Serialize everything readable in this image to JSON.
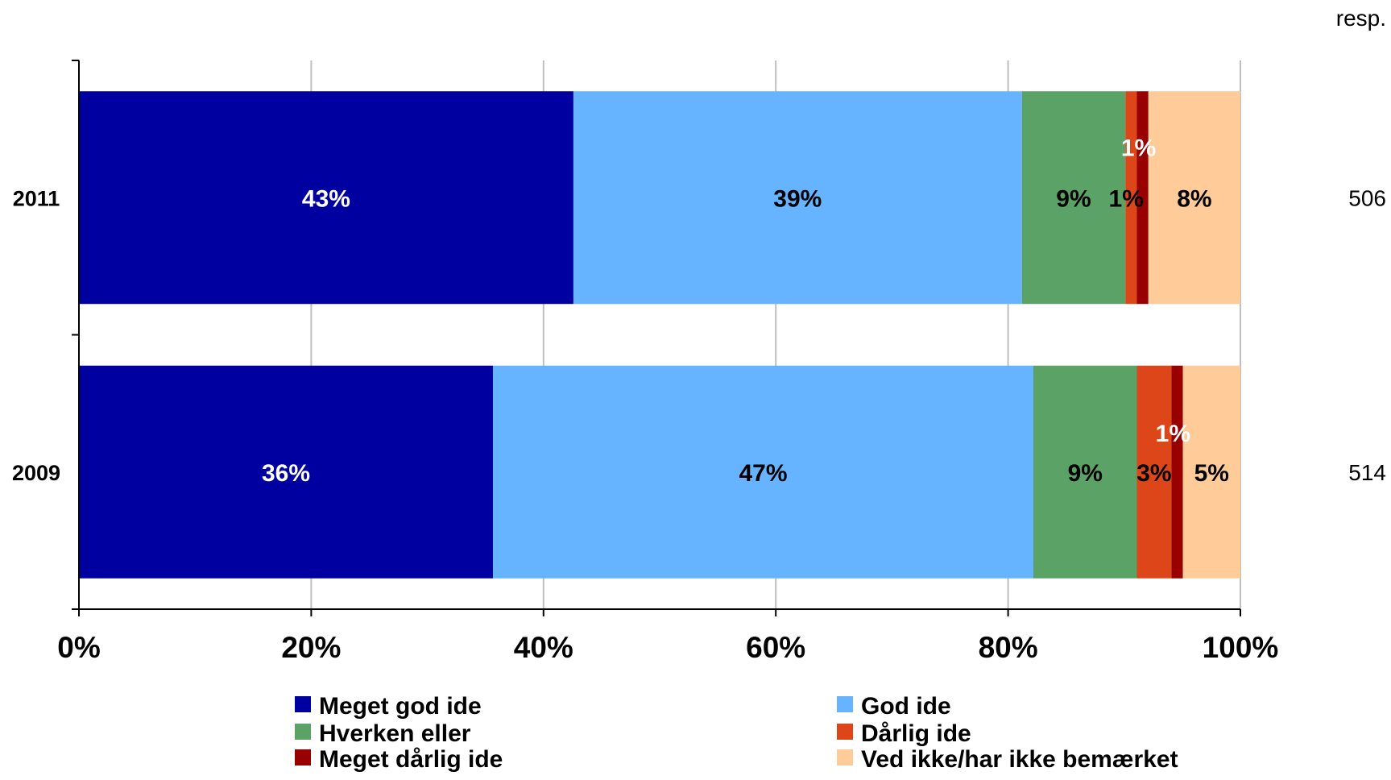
{
  "chart_data": {
    "type": "bar",
    "orientation": "horizontal",
    "stacked": "percent",
    "categories": [
      "2011",
      "2009"
    ],
    "series": [
      {
        "name": "Meget god ide",
        "color": "#0000A0",
        "values": [
          43,
          36
        ],
        "labels": [
          "43%",
          "36%"
        ],
        "label_color": "#ffffff"
      },
      {
        "name": "God ide",
        "color": "#66B3FF",
        "values": [
          39,
          47
        ],
        "labels": [
          "39%",
          "47%"
        ],
        "label_color": "#000000"
      },
      {
        "name": "Hverken eller",
        "color": "#5BA266",
        "values": [
          9,
          9
        ],
        "labels": [
          "9%",
          "9%"
        ],
        "label_color": "#000000"
      },
      {
        "name": "Dårlig ide",
        "color": "#DC4618",
        "values": [
          1,
          3
        ],
        "labels": [
          "1%",
          "3%"
        ],
        "label_color": "#000000"
      },
      {
        "name": "Meget dårlig ide",
        "color": "#990000",
        "values": [
          1,
          1
        ],
        "labels": [
          "1%",
          "1%"
        ],
        "label_color": "#ffffff"
      },
      {
        "name": "Ved ikke/har ikke bemærket",
        "color": "#FFCC99",
        "values": [
          8,
          5
        ],
        "labels": [
          "8%",
          "5%"
        ],
        "label_color": "#000000"
      }
    ],
    "xlim": [
      0,
      100
    ],
    "x_ticks": [
      "0%",
      "20%",
      "40%",
      "60%",
      "80%",
      "100%"
    ],
    "grid": "vertical",
    "legend_placement": "bottom",
    "resp": {
      "header": "resp.",
      "values": [
        "506",
        "514"
      ]
    }
  }
}
